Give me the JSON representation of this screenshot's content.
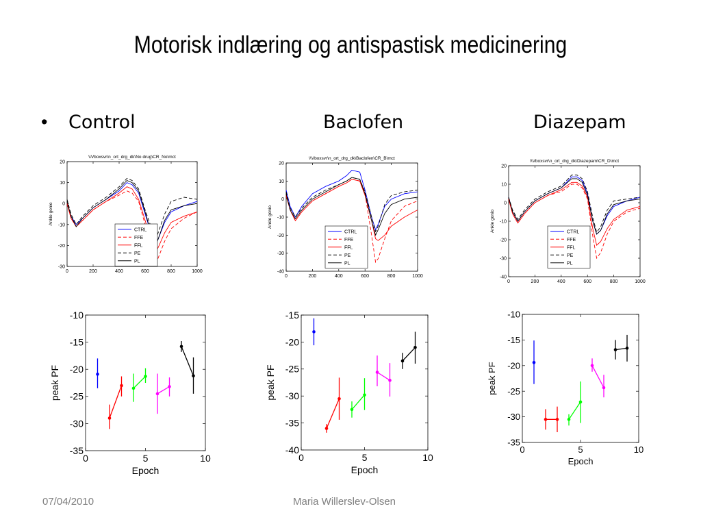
{
  "slide": {
    "title": "Motorisk indlæring og antispastisk medicinering",
    "bullet": "•",
    "columns": [
      "Control",
      "Baclofen",
      "Diazepam"
    ],
    "footer_date": "07/04/2010",
    "footer_author": "Maria Willerslev-Olsen"
  },
  "chart_data": [
    {
      "type": "line",
      "title": "\\\\Vboxsvr\\n_ort_drg_dk\\No drug\\CR_No\\mct",
      "xlabel": "",
      "ylabel": "Ankle gonio",
      "xlim": [
        0,
        1000
      ],
      "ylim": [
        -30,
        20
      ],
      "xticks": [
        0,
        200,
        400,
        600,
        800,
        1000
      ],
      "yticks": [
        -30,
        -20,
        -10,
        0,
        10,
        20
      ],
      "legend_position": "bottom-center",
      "series": [
        {
          "name": "CTRL",
          "color": "#0000ff",
          "dash": "",
          "x": [
            0,
            30,
            70,
            120,
            200,
            300,
            400,
            460,
            500,
            550,
            600,
            650,
            680,
            700,
            750,
            800,
            900,
            1000
          ],
          "y": [
            0,
            -6,
            -10,
            -7,
            -2,
            2,
            6,
            10,
            9,
            5,
            -5,
            -15,
            -20,
            -17,
            -9,
            -4,
            -1,
            1
          ]
        },
        {
          "name": "FFE",
          "color": "#ff0000",
          "dash": "5,3",
          "x": [
            0,
            30,
            70,
            120,
            200,
            300,
            400,
            460,
            500,
            550,
            600,
            650,
            680,
            700,
            750,
            800,
            900,
            1000
          ],
          "y": [
            0,
            -7,
            -11,
            -8,
            -3,
            1,
            4,
            6,
            5,
            1,
            -10,
            -24,
            -29,
            -26,
            -18,
            -12,
            -7,
            -4
          ]
        },
        {
          "name": "FFL",
          "color": "#ff0000",
          "dash": "",
          "x": [
            0,
            30,
            70,
            120,
            200,
            300,
            400,
            460,
            500,
            550,
            600,
            650,
            680,
            700,
            750,
            800,
            900,
            1000
          ],
          "y": [
            0,
            -7,
            -11,
            -8,
            -3,
            1,
            5,
            8,
            7,
            2,
            -8,
            -19,
            -23,
            -21,
            -14,
            -9,
            -6,
            -4
          ]
        },
        {
          "name": "PE",
          "color": "#000000",
          "dash": "5,3",
          "x": [
            0,
            30,
            70,
            120,
            200,
            300,
            400,
            460,
            500,
            550,
            600,
            650,
            680,
            700,
            750,
            800,
            900,
            1000
          ],
          "y": [
            2,
            -5,
            -10,
            -6,
            -1,
            3,
            8,
            12,
            11,
            7,
            -3,
            -12,
            -17,
            -14,
            -5,
            1,
            3,
            2
          ]
        },
        {
          "name": "PL",
          "color": "#000000",
          "dash": "",
          "x": [
            0,
            30,
            70,
            120,
            200,
            300,
            400,
            460,
            500,
            550,
            600,
            650,
            680,
            700,
            750,
            800,
            900,
            1000
          ],
          "y": [
            1,
            -6,
            -11,
            -7,
            -2,
            2,
            7,
            11,
            10,
            6,
            -4,
            -15,
            -20,
            -17,
            -8,
            -3,
            -1,
            0
          ]
        }
      ]
    },
    {
      "type": "line",
      "title": "\\\\Vboxsvr\\n_ort_drg_dk\\Baclofen\\CR_B\\mct",
      "xlabel": "",
      "ylabel": "Ankle gonio",
      "xlim": [
        0,
        1000
      ],
      "ylim": [
        -40,
        20
      ],
      "xticks": [
        0,
        200,
        400,
        600,
        800,
        1000
      ],
      "yticks": [
        -40,
        -30,
        -20,
        -10,
        0,
        10,
        20
      ],
      "legend_position": "bottom-center",
      "series": [
        {
          "name": "CTRL",
          "color": "#0000ff",
          "dash": "",
          "x": [
            0,
            30,
            70,
            120,
            200,
            300,
            400,
            460,
            500,
            560,
            600,
            650,
            680,
            700,
            750,
            800,
            900,
            1000
          ],
          "y": [
            5,
            -4,
            -10,
            -4,
            3,
            7,
            10,
            13,
            16,
            15,
            5,
            -10,
            -17,
            -14,
            -4,
            0,
            3,
            4
          ]
        },
        {
          "name": "FFE",
          "color": "#ff0000",
          "dash": "5,3",
          "x": [
            0,
            30,
            70,
            120,
            200,
            300,
            400,
            460,
            500,
            560,
            600,
            650,
            680,
            700,
            750,
            800,
            900,
            1000
          ],
          "y": [
            2,
            -6,
            -12,
            -7,
            -1,
            3,
            7,
            9,
            11,
            10,
            3,
            -20,
            -35,
            -33,
            -22,
            -12,
            -4,
            -1
          ]
        },
        {
          "name": "FFL",
          "color": "#ff0000",
          "dash": "",
          "x": [
            0,
            30,
            70,
            120,
            200,
            300,
            400,
            460,
            500,
            560,
            600,
            650,
            680,
            700,
            750,
            800,
            900,
            1000
          ],
          "y": [
            2,
            -6,
            -12,
            -7,
            -1,
            3,
            7,
            9,
            11,
            10,
            2,
            -12,
            -22,
            -23,
            -20,
            -15,
            -10,
            -6
          ]
        },
        {
          "name": "PE",
          "color": "#000000",
          "dash": "5,3",
          "x": [
            0,
            30,
            70,
            120,
            200,
            300,
            400,
            460,
            500,
            560,
            600,
            650,
            680,
            700,
            750,
            800,
            900,
            1000
          ],
          "y": [
            4,
            -5,
            -10,
            -5,
            1,
            5,
            8,
            10,
            12,
            11,
            4,
            -10,
            -18,
            -15,
            -3,
            2,
            4,
            5
          ]
        },
        {
          "name": "PL",
          "color": "#000000",
          "dash": "",
          "x": [
            0,
            30,
            70,
            120,
            200,
            300,
            400,
            460,
            500,
            560,
            600,
            650,
            680,
            700,
            750,
            800,
            900,
            1000
          ],
          "y": [
            3,
            -6,
            -11,
            -6,
            0,
            4,
            8,
            10,
            12,
            11,
            3,
            -12,
            -20,
            -17,
            -8,
            -3,
            0,
            1
          ]
        }
      ]
    },
    {
      "type": "line",
      "title": "\\\\Vboxsvr\\n_ort_drg_dk\\Diazepam\\CR_D\\mct",
      "xlabel": "",
      "ylabel": "Ankle gonio",
      "xlim": [
        0,
        1000
      ],
      "ylim": [
        -40,
        20
      ],
      "xticks": [
        0,
        200,
        400,
        600,
        800,
        1000
      ],
      "yticks": [
        -40,
        -30,
        -20,
        -10,
        0,
        10,
        20
      ],
      "legend_position": "bottom-center",
      "series": [
        {
          "name": "CTRL",
          "color": "#0000ff",
          "dash": "",
          "x": [
            0,
            30,
            70,
            120,
            200,
            300,
            400,
            480,
            520,
            560,
            600,
            640,
            670,
            700,
            750,
            800,
            900,
            1000
          ],
          "y": [
            3,
            -5,
            -10,
            -5,
            1,
            5,
            8,
            14,
            14,
            12,
            5,
            -10,
            -17,
            -15,
            -7,
            -2,
            1,
            3
          ]
        },
        {
          "name": "FFE",
          "color": "#ff0000",
          "dash": "5,3",
          "x": [
            0,
            30,
            70,
            120,
            200,
            300,
            400,
            480,
            520,
            560,
            600,
            640,
            670,
            700,
            750,
            800,
            900,
            1000
          ],
          "y": [
            2,
            -6,
            -11,
            -6,
            0,
            4,
            6,
            10,
            10,
            8,
            2,
            -18,
            -30,
            -27,
            -17,
            -10,
            -5,
            -3
          ]
        },
        {
          "name": "FFL",
          "color": "#ff0000",
          "dash": "",
          "x": [
            0,
            30,
            70,
            120,
            200,
            300,
            400,
            480,
            520,
            560,
            600,
            640,
            670,
            700,
            750,
            800,
            900,
            1000
          ],
          "y": [
            2,
            -6,
            -11,
            -6,
            0,
            4,
            7,
            11,
            11,
            9,
            3,
            -14,
            -23,
            -21,
            -14,
            -9,
            -4,
            -2
          ]
        },
        {
          "name": "PE",
          "color": "#000000",
          "dash": "5,3",
          "x": [
            0,
            30,
            70,
            120,
            200,
            300,
            400,
            480,
            520,
            560,
            600,
            640,
            670,
            700,
            750,
            800,
            900,
            1000
          ],
          "y": [
            3,
            -4,
            -9,
            -4,
            2,
            6,
            9,
            15,
            15,
            13,
            6,
            -8,
            -16,
            -13,
            -4,
            1,
            2,
            3
          ]
        },
        {
          "name": "PL",
          "color": "#000000",
          "dash": "",
          "x": [
            0,
            30,
            70,
            120,
            200,
            300,
            400,
            480,
            520,
            560,
            600,
            640,
            670,
            700,
            750,
            800,
            900,
            1000
          ],
          "y": [
            3,
            -5,
            -10,
            -5,
            1,
            5,
            8,
            13,
            13,
            11,
            4,
            -10,
            -17,
            -15,
            -6,
            -1,
            1,
            2
          ]
        }
      ]
    },
    {
      "type": "scatter",
      "title": "",
      "xlabel": "Epoch",
      "ylabel": "peak PF",
      "xlim": [
        0,
        10
      ],
      "ylim": [
        -35,
        -10
      ],
      "xticks": [
        0,
        5,
        10
      ],
      "yticks": [
        -35,
        -30,
        -25,
        -20,
        -15,
        -10
      ],
      "series": [
        {
          "color": "#0000ff",
          "x": [
            1
          ],
          "y": [
            -20.9
          ],
          "err_low": [
            -23.5
          ],
          "err_high": [
            -18
          ]
        },
        {
          "color": "#ff0000",
          "x": [
            2,
            3
          ],
          "y": [
            -29,
            -23
          ],
          "err_low": [
            -31,
            -25
          ],
          "err_high": [
            -26.5,
            -21.3
          ]
        },
        {
          "color": "#00ff00",
          "x": [
            4,
            5
          ],
          "y": [
            -23.5,
            -21.3
          ],
          "err_low": [
            -26,
            -22.5
          ],
          "err_high": [
            -20.8,
            -19.8
          ]
        },
        {
          "color": "#ff00ff",
          "x": [
            6,
            7
          ],
          "y": [
            -24.5,
            -23.2
          ],
          "err_low": [
            -28.2,
            -25
          ],
          "err_high": [
            -20.8,
            -21.5
          ]
        },
        {
          "color": "#000000",
          "x": [
            8,
            9
          ],
          "y": [
            -15.8,
            -21.2
          ],
          "err_low": [
            -16.8,
            -24.5
          ],
          "err_high": [
            -14.8,
            -17.8
          ]
        }
      ]
    },
    {
      "type": "scatter",
      "title": "",
      "xlabel": "Epoch",
      "ylabel": "peak PF",
      "xlim": [
        0,
        10
      ],
      "ylim": [
        -40,
        -15
      ],
      "xticks": [
        0,
        5,
        10
      ],
      "yticks": [
        -40,
        -35,
        -30,
        -25,
        -20,
        -15
      ],
      "series": [
        {
          "color": "#0000ff",
          "x": [
            1
          ],
          "y": [
            -18.1
          ],
          "err_low": [
            -20.6
          ],
          "err_high": [
            -15.6
          ]
        },
        {
          "color": "#ff0000",
          "x": [
            2,
            3
          ],
          "y": [
            -36,
            -30.5
          ],
          "err_low": [
            -36.8,
            -34.4
          ],
          "err_high": [
            -35.2,
            -26.6
          ]
        },
        {
          "color": "#00ff00",
          "x": [
            4,
            5
          ],
          "y": [
            -32.5,
            -29.8
          ],
          "err_low": [
            -34,
            -32.6
          ],
          "err_high": [
            -31,
            -26.7
          ]
        },
        {
          "color": "#ff00ff",
          "x": [
            6,
            7
          ],
          "y": [
            -25.6,
            -27.1
          ],
          "err_low": [
            -28.2,
            -30.1
          ],
          "err_high": [
            -22.5,
            -23.9
          ]
        },
        {
          "color": "#000000",
          "x": [
            8,
            9
          ],
          "y": [
            -23.5,
            -21
          ],
          "err_low": [
            -25,
            -24
          ],
          "err_high": [
            -22,
            -18.1
          ]
        }
      ]
    },
    {
      "type": "scatter",
      "title": "",
      "xlabel": "Epoch",
      "ylabel": "peak PF",
      "xlim": [
        0,
        10
      ],
      "ylim": [
        -35,
        -10
      ],
      "xticks": [
        0,
        5,
        10
      ],
      "yticks": [
        -35,
        -30,
        -25,
        -20,
        -15,
        -10
      ],
      "series": [
        {
          "color": "#0000ff",
          "x": [
            1
          ],
          "y": [
            -19.4
          ],
          "err_low": [
            -23.6
          ],
          "err_high": [
            -15.1
          ]
        },
        {
          "color": "#ff0000",
          "x": [
            2,
            3
          ],
          "y": [
            -30.5,
            -30.5
          ],
          "err_low": [
            -32.5,
            -33
          ],
          "err_high": [
            -28.5,
            -28
          ]
        },
        {
          "color": "#00ff00",
          "x": [
            4,
            5
          ],
          "y": [
            -30.5,
            -27.1
          ],
          "err_low": [
            -31.7,
            -31.2
          ],
          "err_high": [
            -29.5,
            -23.1
          ]
        },
        {
          "color": "#ff00ff",
          "x": [
            6,
            7
          ],
          "y": [
            -20,
            -24.3
          ],
          "err_low": [
            -21.2,
            -26.2
          ],
          "err_high": [
            -18.6,
            -21.8
          ]
        },
        {
          "color": "#000000",
          "x": [
            8,
            9
          ],
          "y": [
            -16.9,
            -16.6
          ],
          "err_low": [
            -18.8,
            -19.2
          ],
          "err_high": [
            -15,
            -14
          ]
        }
      ]
    }
  ]
}
